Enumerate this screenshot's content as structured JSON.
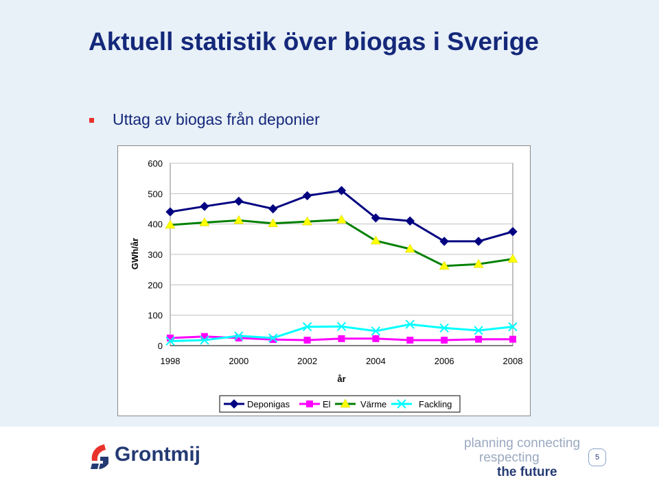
{
  "slide": {
    "title": "Aktuell statistik över biogas i Sverige",
    "bullet": "Uttag av biogas från deponier",
    "page_number": "5"
  },
  "footer": {
    "logo_text": "Grontmij",
    "tagline": [
      "planning connecting",
      "respecting",
      "the future"
    ]
  },
  "colors": {
    "title": "#14287a",
    "bullet": "#e8322b",
    "background": "#e8f0f8",
    "deponigas": "#000080",
    "el": "#ff00ff",
    "varme": "#008000",
    "fackling": "#00ffff"
  },
  "chart_data": {
    "type": "line",
    "title": "",
    "xlabel": "år",
    "ylabel": "GWh/år",
    "x": [
      1998,
      1999,
      2000,
      2001,
      2002,
      2003,
      2004,
      2005,
      2006,
      2007,
      2008
    ],
    "xticks": [
      1998,
      2000,
      2002,
      2004,
      2006,
      2008
    ],
    "yticks": [
      0,
      100,
      200,
      300,
      400,
      500,
      600
    ],
    "ylim": [
      0,
      600
    ],
    "xlim": [
      1998,
      2008
    ],
    "grid": "horizontal",
    "legend_position": "bottom",
    "series": [
      {
        "name": "Deponigas",
        "marker": "diamond",
        "color": "#000080",
        "line_color": "#000080",
        "values": [
          440,
          458,
          475,
          450,
          493,
          510,
          420,
          410,
          343,
          343,
          375
        ]
      },
      {
        "name": "El",
        "marker": "square",
        "color": "#ff00ff",
        "line_color": "#ff00ff",
        "values": [
          25,
          30,
          25,
          20,
          18,
          23,
          23,
          18,
          18,
          21,
          21
        ]
      },
      {
        "name": "Värme",
        "marker": "triangle",
        "color": "#ffff00",
        "line_color": "#008000",
        "values": [
          397,
          405,
          412,
          402,
          408,
          414,
          345,
          318,
          262,
          268,
          285
        ]
      },
      {
        "name": "Fackling",
        "marker": "x",
        "color": "#00ffff",
        "line_color": "#00ffff",
        "values": [
          15,
          18,
          32,
          25,
          62,
          63,
          48,
          70,
          58,
          50,
          62
        ]
      }
    ]
  }
}
